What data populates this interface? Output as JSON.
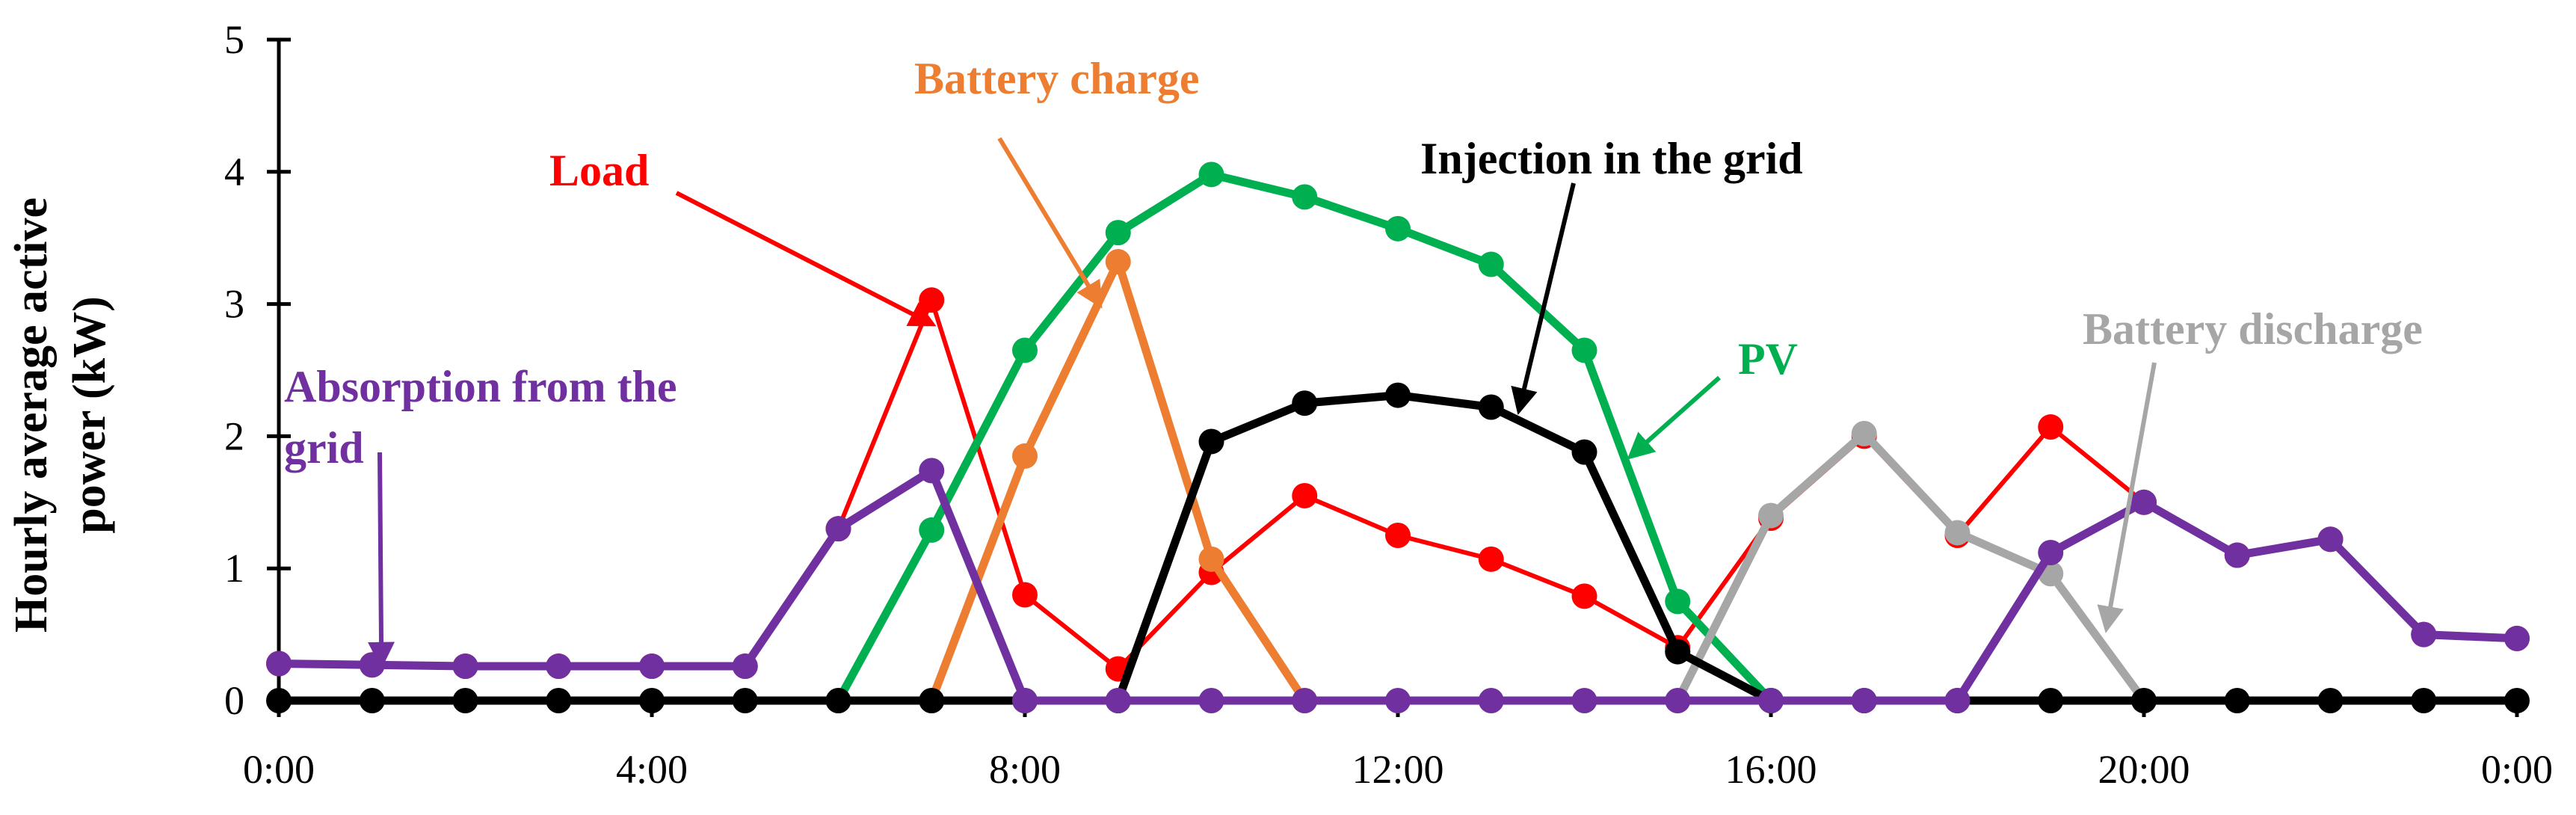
{
  "chart_data": {
    "type": "line",
    "title": "",
    "xlabel": "",
    "ylabel": "Hourly average active power (kW)",
    "ylabel_lines": [
      "Hourly average active",
      "power (kW)"
    ],
    "ylim": [
      0,
      5
    ],
    "yticks": [
      "0",
      "1",
      "2",
      "3",
      "4",
      "5"
    ],
    "x": [
      0,
      1,
      2,
      3,
      4,
      5,
      6,
      7,
      8,
      9,
      10,
      11,
      12,
      13,
      14,
      15,
      16,
      17,
      18,
      19,
      20,
      21,
      22,
      23,
      24
    ],
    "xticks": [
      {
        "x": 0,
        "label": "0:00"
      },
      {
        "x": 4,
        "label": "4:00"
      },
      {
        "x": 8,
        "label": "8:00"
      },
      {
        "x": 12,
        "label": "12:00"
      },
      {
        "x": 16,
        "label": "16:00"
      },
      {
        "x": 20,
        "label": "20:00"
      },
      {
        "x": 24,
        "label": "0:00"
      }
    ],
    "series": [
      {
        "name": "Load",
        "color": "#ff0000",
        "markers": true,
        "width": 6,
        "values": [
          0.28,
          0.27,
          0.26,
          0.26,
          0.26,
          0.26,
          1.3,
          3.03,
          0.8,
          0.24,
          0.97,
          1.55,
          1.25,
          1.07,
          0.79,
          0.4,
          1.38,
          2.0,
          1.25,
          2.07,
          1.5,
          1.1,
          1.22,
          0.5,
          0.47
        ],
        "annotation": {
          "label": "Load",
          "text_color": "#ff0000",
          "arrow_to_x": 7,
          "arrow_to_y": 2.85
        }
      },
      {
        "name": "PV",
        "color": "#00b050",
        "markers": true,
        "width": 11,
        "values": [
          null,
          null,
          null,
          null,
          null,
          null,
          0,
          1.29,
          2.65,
          3.54,
          3.98,
          3.81,
          3.57,
          3.3,
          2.65,
          0.75,
          0,
          null,
          null,
          null,
          null,
          null,
          null,
          null,
          null
        ],
        "annotation": {
          "label": "PV",
          "text_color": "#00b050",
          "arrow_to_x": 14.5,
          "arrow_to_y": 1.85
        }
      },
      {
        "name": "Battery charge",
        "color": "#ed7d31",
        "markers": true,
        "width": 11,
        "values": [
          null,
          null,
          null,
          null,
          null,
          null,
          null,
          0,
          1.85,
          3.32,
          1.07,
          0,
          null,
          null,
          null,
          null,
          null,
          null,
          null,
          null,
          null,
          null,
          null,
          null,
          null
        ],
        "annotation": {
          "label": "Battery charge",
          "text_color": "#ed7d31",
          "arrow_to_x": 8.8,
          "arrow_to_y": 3.0
        }
      },
      {
        "name": "Battery discharge",
        "color": "#a6a6a6",
        "markers": true,
        "width": 11,
        "values": [
          null,
          null,
          null,
          null,
          null,
          null,
          null,
          null,
          null,
          null,
          null,
          null,
          null,
          null,
          null,
          0,
          1.4,
          2.02,
          1.27,
          0.96,
          0,
          null,
          null,
          null,
          null
        ],
        "annotation": {
          "label": "Battery discharge",
          "text_color": "#a6a6a6",
          "arrow_to_x": 19.6,
          "arrow_to_y": 0.55
        }
      },
      {
        "name": "Injection in the grid",
        "color": "#000000",
        "markers": true,
        "width": 11,
        "values": [
          0,
          0,
          0,
          0,
          0,
          0,
          0,
          0,
          0,
          0,
          1.96,
          2.25,
          2.31,
          2.22,
          1.88,
          0.37,
          0,
          0,
          0,
          0,
          0,
          0,
          0,
          0,
          0
        ],
        "annotation": {
          "label": "Injection in the grid",
          "text_color": "#000000",
          "arrow_to_x": 13.3,
          "arrow_to_y": 2.2
        }
      },
      {
        "name": "Absorption from the grid",
        "color": "#7030a0",
        "markers": true,
        "width": 11,
        "values": [
          0.28,
          0.27,
          0.26,
          0.26,
          0.26,
          0.26,
          1.3,
          1.74,
          0,
          0,
          0,
          0,
          0,
          0,
          0,
          0,
          0,
          0,
          0,
          1.12,
          1.5,
          1.1,
          1.22,
          0.5,
          0.47
        ],
        "annotation": {
          "label": "Absorption from the grid",
          "label_lines": [
            "Absorption from the",
            "grid"
          ],
          "text_color": "#7030a0",
          "arrow_to_x": 1.1,
          "arrow_to_y": 0.28
        }
      }
    ]
  }
}
